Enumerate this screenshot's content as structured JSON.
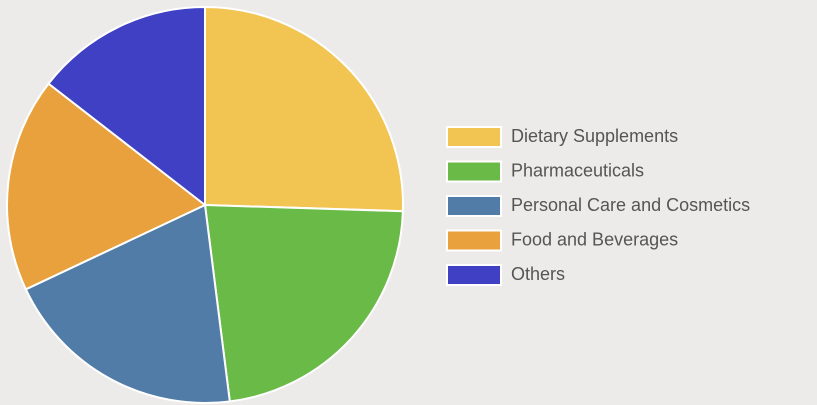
{
  "chart_data": {
    "type": "pie",
    "categories": [
      "Dietary Supplements",
      "Pharmaceuticals",
      "Personal Care and Cosmetics",
      "Food and Beverages",
      "Others"
    ],
    "values": [
      25.5,
      22.5,
      20,
      17.5,
      14.5
    ],
    "colors": [
      "#f2c451",
      "#6aba48",
      "#517ca8",
      "#e8a13c",
      "#3f40c4"
    ],
    "legend": "right"
  }
}
